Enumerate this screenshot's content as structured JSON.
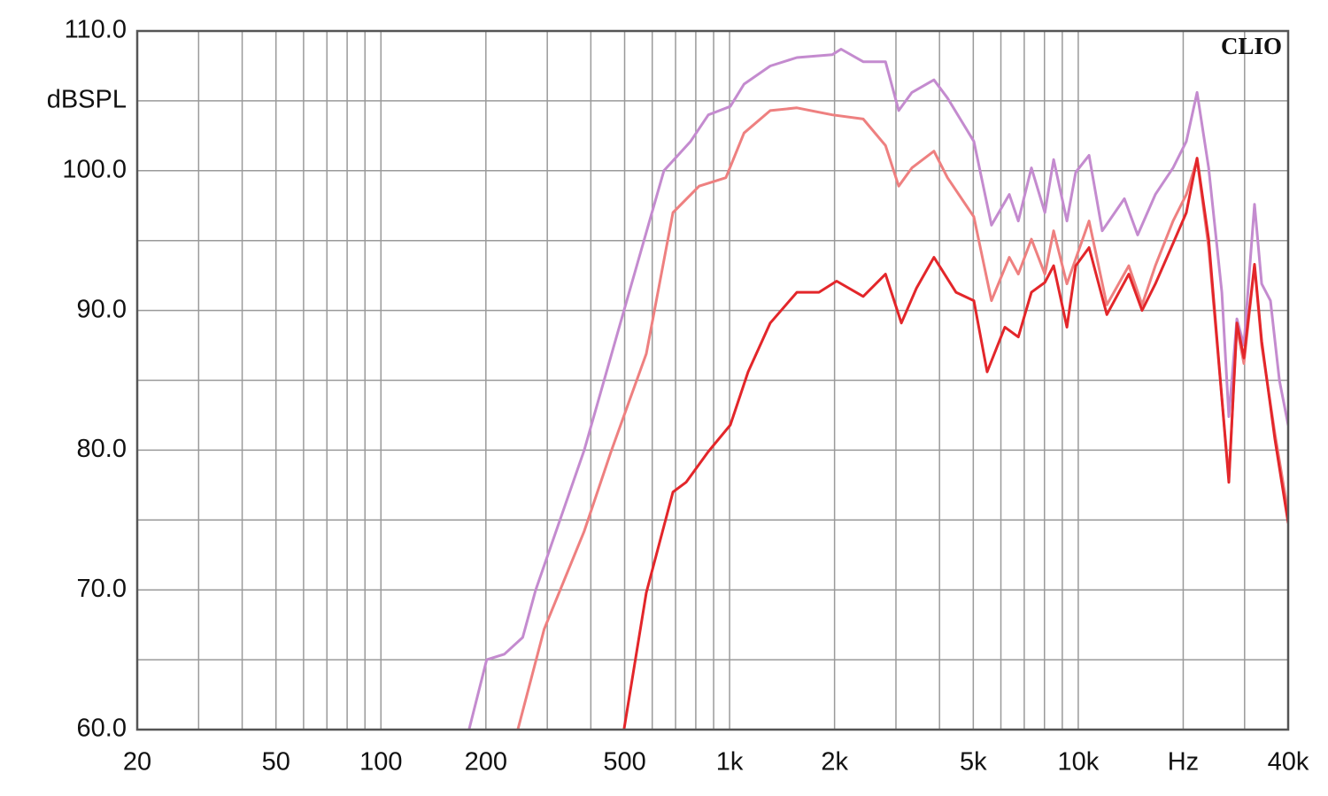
{
  "chart_data": {
    "type": "line",
    "y_label": "dBSPL",
    "annotation": "CLIO",
    "xscale": "log",
    "grid": true,
    "xlim": [
      20,
      40000
    ],
    "ylim": [
      60,
      110
    ],
    "xticks": [
      20,
      50,
      100,
      200,
      500,
      {
        "value": 1000,
        "label": "1k"
      },
      {
        "value": 2000,
        "label": "2k"
      },
      {
        "value": 5000,
        "label": "5k"
      },
      {
        "value": 10000,
        "label": "10k"
      },
      {
        "value": 20000,
        "label": "Hz"
      },
      {
        "value": 40000,
        "label": "40k"
      }
    ],
    "x_grid": [
      30,
      40,
      60,
      70,
      80,
      90,
      300,
      400,
      600,
      700,
      800,
      900,
      3000,
      4000,
      6000,
      7000,
      8000,
      9000,
      30000
    ],
    "yticks": [
      {
        "value": 60,
        "label": "60.0"
      },
      {
        "value": 70,
        "label": "70.0"
      },
      {
        "value": 80,
        "label": "80.0"
      },
      {
        "value": 90,
        "label": "90.0"
      },
      {
        "value": 100,
        "label": "100.0"
      },
      {
        "value": 110,
        "label": "110.0"
      }
    ],
    "y_grid": [
      65,
      75,
      85,
      95,
      105
    ],
    "series": [
      {
        "color": "#c48bcf",
        "x": [
          179,
          201,
          226,
          255,
          278,
          383,
          498,
          648,
          773,
          869,
          1005,
          1100,
          1308,
          1560,
          1970,
          2088,
          2416,
          2800,
          3056,
          3334,
          3856,
          4216,
          5020,
          5640,
          6340,
          6730,
          7340,
          8020,
          8500,
          9280,
          9840,
          10740,
          11720,
          13560,
          14800,
          16640,
          18700,
          20420,
          21920,
          23660,
          25820,
          27040,
          28520,
          29860,
          32040,
          33580,
          35580,
          37760,
          40000
        ],
        "values": [
          60.0,
          65.0,
          65.4,
          66.6,
          70.0,
          80.0,
          90.0,
          100.0,
          102.1,
          104.0,
          104.6,
          106.2,
          107.5,
          108.1,
          108.3,
          108.7,
          107.8,
          107.8,
          104.3,
          105.6,
          106.5,
          105.2,
          102.1,
          96.1,
          98.3,
          96.4,
          100.2,
          97.0,
          100.8,
          96.4,
          99.9,
          101.1,
          95.7,
          98.0,
          95.4,
          98.3,
          100.2,
          102.1,
          105.6,
          100.2,
          91.3,
          82.4,
          89.4,
          87.5,
          97.6,
          91.9,
          90.7,
          85.0,
          81.8
        ]
      },
      {
        "color": "#ee8080",
        "x": [
          247,
          294,
          383,
          457,
          577,
          688,
          818,
          976,
          1100,
          1308,
          1560,
          1970,
          2416,
          2800,
          3056,
          3334,
          3856,
          4216,
          5020,
          5640,
          6340,
          6730,
          7340,
          8020,
          8500,
          9280,
          10740,
          12080,
          13960,
          15240,
          16640,
          18700,
          20420,
          21920,
          23660,
          27040,
          28520,
          29860,
          32040,
          33580,
          36640,
          40000
        ],
        "values": [
          60.0,
          67.2,
          74.2,
          79.9,
          86.9,
          97.0,
          98.9,
          99.5,
          102.7,
          104.3,
          104.5,
          104.0,
          103.7,
          101.8,
          98.9,
          100.2,
          101.4,
          99.5,
          96.7,
          90.7,
          93.8,
          92.6,
          95.1,
          92.6,
          95.7,
          91.9,
          96.4,
          90.4,
          93.2,
          90.4,
          93.2,
          96.4,
          98.3,
          100.8,
          94.5,
          78.0,
          88.8,
          86.2,
          93.2,
          87.5,
          81.2,
          75.5
        ]
      },
      {
        "color": "#e3262a",
        "x": [
          498,
          577,
          688,
          750,
          869,
          1005,
          1130,
          1308,
          1560,
          1804,
          2028,
          2416,
          2800,
          3110,
          3436,
          3856,
          4460,
          5020,
          5480,
          6160,
          6730,
          7340,
          8020,
          8500,
          9280,
          9840,
          10740,
          12080,
          13960,
          15240,
          16640,
          18700,
          20420,
          21920,
          23660,
          27040,
          28520,
          29860,
          32040,
          33580,
          36640,
          40000
        ],
        "values": [
          60.0,
          69.8,
          77.0,
          77.7,
          79.9,
          81.8,
          85.6,
          89.1,
          91.3,
          91.3,
          92.1,
          91.0,
          92.6,
          89.1,
          91.6,
          93.8,
          91.3,
          90.7,
          85.6,
          88.8,
          88.1,
          91.3,
          92.0,
          93.2,
          88.8,
          93.2,
          94.5,
          89.7,
          92.6,
          90.0,
          91.9,
          94.8,
          97.0,
          100.9,
          95.1,
          77.7,
          89.1,
          86.6,
          93.3,
          87.8,
          80.8,
          74.8
        ]
      }
    ]
  }
}
